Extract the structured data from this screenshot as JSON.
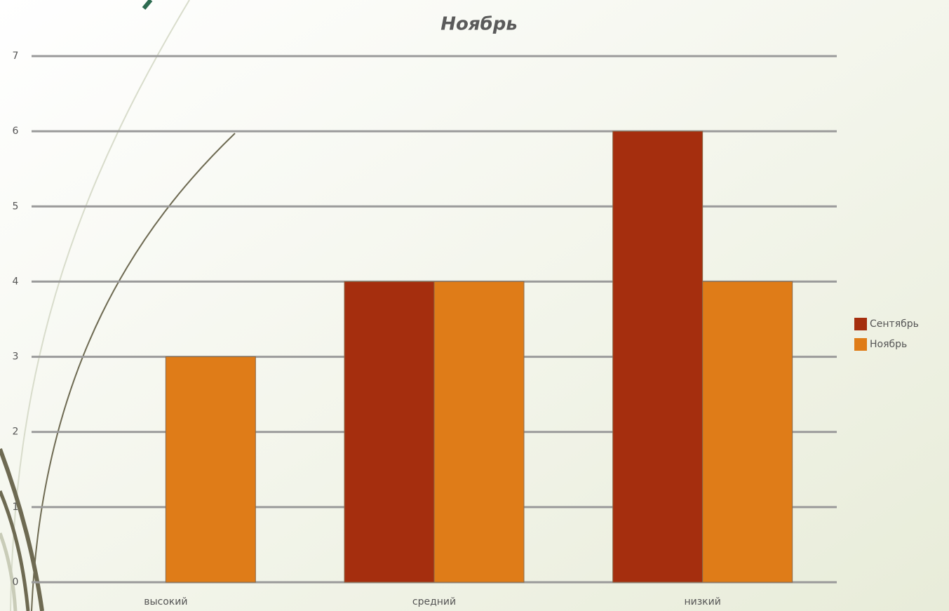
{
  "chart_data": {
    "type": "bar",
    "title": "Ноябрь",
    "categories": [
      "высокий",
      "средний",
      "низкий"
    ],
    "series": [
      {
        "name": "Сентябрь",
        "color": "#a52e0e",
        "values": [
          0,
          4,
          6
        ]
      },
      {
        "name": "Ноябрь",
        "color": "#df7c18",
        "values": [
          3,
          4,
          4
        ]
      }
    ],
    "ylim": [
      0,
      7
    ],
    "yticks": [
      0,
      1,
      2,
      3,
      4,
      5,
      6,
      7
    ],
    "grid": true,
    "legend": "right"
  }
}
